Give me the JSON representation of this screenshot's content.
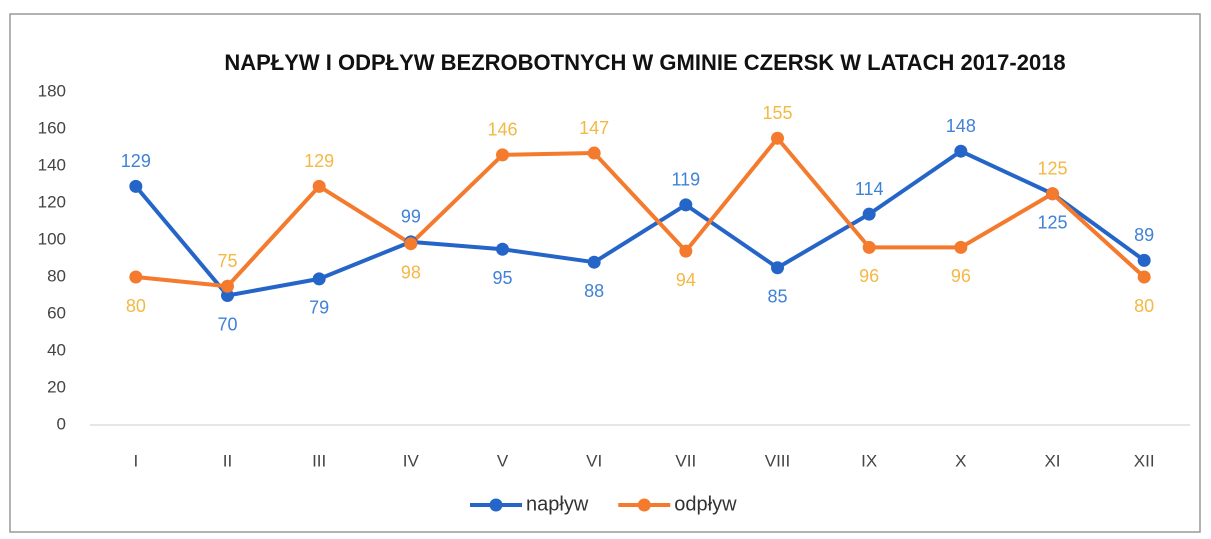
{
  "chart_data": {
    "type": "line",
    "title": "NAPŁYW I ODPŁYW BEZROBOTNYCH W GMINIE CZERSK W LATACH 2017-2018",
    "categories": [
      "I",
      "II",
      "III",
      "IV",
      "V",
      "VI",
      "VII",
      "VIII",
      "IX",
      "X",
      "XI",
      "XII"
    ],
    "series": [
      {
        "name": "napływ",
        "color": "#2565c7",
        "label_color": "#3f82d8",
        "values": [
          129,
          70,
          79,
          99,
          95,
          88,
          119,
          85,
          114,
          148,
          125,
          89
        ]
      },
      {
        "name": "odpływ",
        "color": "#f47b2e",
        "label_color": "#f4b844",
        "values": [
          80,
          75,
          129,
          98,
          146,
          147,
          94,
          155,
          96,
          96,
          125,
          80
        ]
      }
    ],
    "ylim": [
      0,
      180
    ],
    "yticks": [
      0,
      20,
      40,
      60,
      80,
      100,
      120,
      140,
      160,
      180
    ],
    "grid": false,
    "legend": "bottom"
  }
}
